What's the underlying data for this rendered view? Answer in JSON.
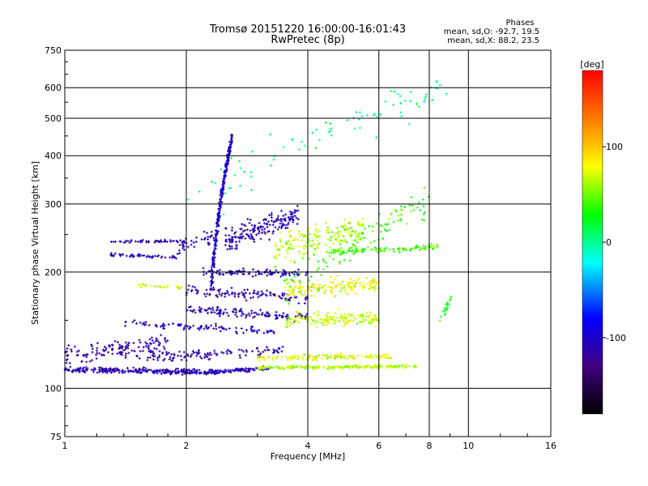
{
  "chart_data": {
    "type": "scatter",
    "title": "Tromsø 20151220 16:00:00-16:01:43",
    "subtitle": "RwPretec (8p)",
    "xlabel": "Frequency [MHz]",
    "ylabel": "Stationary phase Virtual Height [km]",
    "x_scale": "log",
    "y_scale": "log",
    "xlim": [
      1,
      16
    ],
    "ylim": [
      75,
      750
    ],
    "grid": true,
    "x_ticks": [
      "1",
      "2",
      "4",
      "6",
      "8",
      "10",
      "16"
    ],
    "x_tick_values": [
      1,
      2,
      4,
      6,
      8,
      10,
      16
    ],
    "y_ticks": [
      "75",
      "100",
      "200",
      "300",
      "400",
      "500",
      "600",
      "750"
    ],
    "y_tick_values": [
      75,
      100,
      200,
      300,
      400,
      500,
      600,
      750
    ],
    "colorbar": {
      "label": "[deg]",
      "range": [
        -180,
        180
      ],
      "ticks": [
        "100",
        "0",
        "-100"
      ],
      "tick_values": [
        100,
        0,
        -100
      ]
    },
    "annotation": {
      "heading": "Phases",
      "line1": "mean, sd,O: -92.7, 19.5",
      "line2": "mean, sd,X: 88.2, 23.5"
    },
    "traces": [
      {
        "f0": 1.0,
        "f1": 2.3,
        "h0": 112,
        "h1": 110,
        "spread": 2.5,
        "phase": -110,
        "count": 260
      },
      {
        "f0": 2.3,
        "f1": 3.2,
        "h0": 110,
        "h1": 113,
        "spread": 2,
        "phase": -105,
        "count": 110
      },
      {
        "f0": 3.0,
        "f1": 7.5,
        "h0": 113,
        "h1": 114,
        "spread": 1.5,
        "phase": 65,
        "count": 220
      },
      {
        "f0": 1.0,
        "f1": 1.8,
        "h0": 122,
        "h1": 130,
        "spread": 10,
        "phase": -115,
        "count": 140
      },
      {
        "f0": 1.6,
        "f1": 3.5,
        "h0": 120,
        "h1": 125,
        "spread": 5,
        "phase": -110,
        "count": 110
      },
      {
        "f0": 3.0,
        "f1": 6.5,
        "h0": 120,
        "h1": 121,
        "spread": 3,
        "phase": 75,
        "count": 130
      },
      {
        "f0": 1.4,
        "f1": 3.3,
        "h0": 148,
        "h1": 140,
        "spread": 4,
        "phase": -105,
        "count": 90
      },
      {
        "f0": 2.0,
        "f1": 4.0,
        "h0": 160,
        "h1": 152,
        "spread": 6,
        "phase": -110,
        "count": 120
      },
      {
        "f0": 3.5,
        "f1": 6.0,
        "h0": 150,
        "h1": 152,
        "spread": 10,
        "phase": 70,
        "count": 150
      },
      {
        "f0": 2.0,
        "f1": 4.0,
        "h0": 180,
        "h1": 170,
        "spread": 8,
        "phase": -110,
        "count": 110
      },
      {
        "f0": 3.5,
        "f1": 6.0,
        "h0": 180,
        "h1": 185,
        "spread": 15,
        "phase": 80,
        "count": 150
      },
      {
        "f0": 2.2,
        "f1": 4.0,
        "h0": 200,
        "h1": 198,
        "spread": 6,
        "phase": -110,
        "count": 90
      },
      {
        "f0": 1.3,
        "f1": 2.0,
        "h0": 240,
        "h1": 240,
        "spread": 3,
        "phase": -110,
        "count": 50
      },
      {
        "f0": 1.3,
        "f1": 1.9,
        "h0": 222,
        "h1": 218,
        "spread": 3,
        "phase": -105,
        "count": 50
      },
      {
        "f0": 1.9,
        "f1": 2.4,
        "h0": 230,
        "h1": 250,
        "spread": 15,
        "phase": -110,
        "count": 40
      },
      {
        "f0": 2.3,
        "f1": 2.6,
        "h0": 180,
        "h1": 450,
        "spread": 25,
        "phase": -100,
        "count": 260
      },
      {
        "f0": 2.5,
        "f1": 3.8,
        "h0": 240,
        "h1": 280,
        "spread": 25,
        "phase": -110,
        "count": 180
      },
      {
        "f0": 3.3,
        "f1": 5.5,
        "h0": 230,
        "h1": 260,
        "spread": 30,
        "phase": 65,
        "count": 170
      },
      {
        "f0": 4.5,
        "f1": 8.5,
        "h0": 225,
        "h1": 232,
        "spread": 6,
        "phase": 40,
        "count": 110
      },
      {
        "f0": 3.5,
        "f1": 8.0,
        "h0": 180,
        "h1": 300,
        "spread": 40,
        "phase": 40,
        "count": 110
      },
      {
        "f0": 1.5,
        "f1": 2.0,
        "h0": 185,
        "h1": 182,
        "spread": 3,
        "phase": 70,
        "count": 25
      },
      {
        "f0": 8.5,
        "f1": 9.2,
        "h0": 150,
        "h1": 175,
        "spread": 8,
        "phase": 30,
        "count": 20
      },
      {
        "f0": 2.0,
        "f1": 9.0,
        "h0": 300,
        "h1": 600,
        "spread": 80,
        "phase": 0,
        "count": 80
      }
    ]
  }
}
